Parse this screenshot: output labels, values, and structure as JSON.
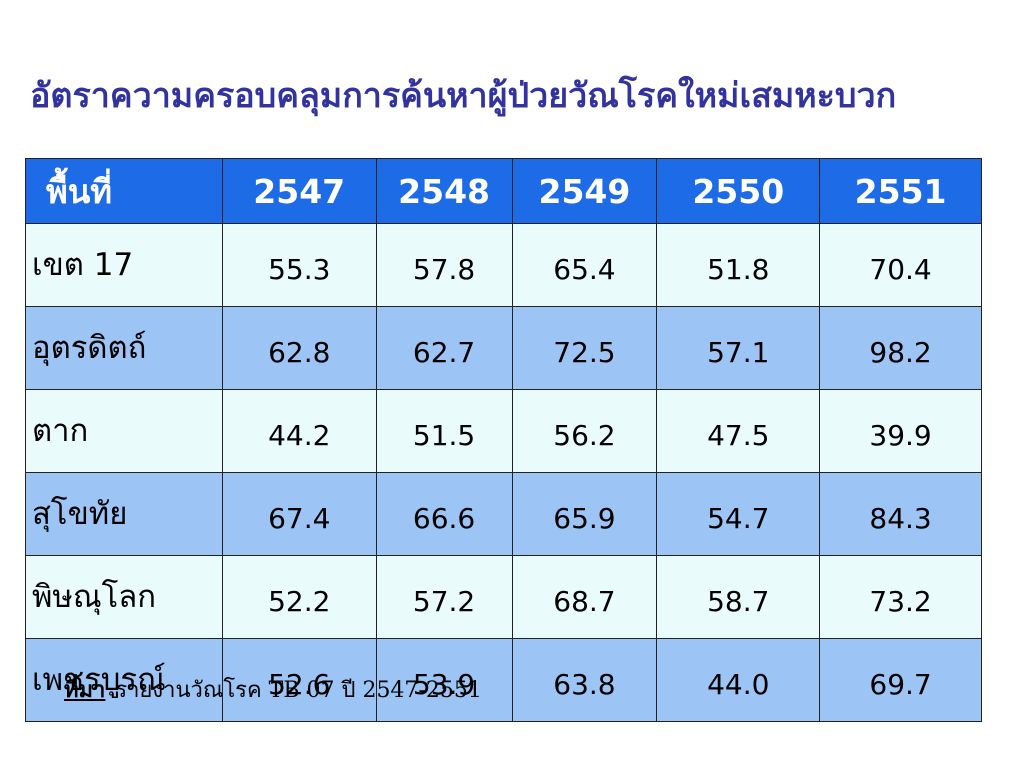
{
  "title": "อัตราความครอบคลุมการค้นหาผู้ป่วยวัณโรคใหม่เสมหะบวก",
  "table": {
    "header": [
      "พื้นที่",
      "2547",
      "2548",
      "2549",
      "2550",
      "2551"
    ],
    "rows": [
      [
        "เขต 17",
        "55.3",
        "57.8",
        "65.4",
        "51.8",
        "70.4"
      ],
      [
        "อุตรดิตถ์",
        "62.8",
        "62.7",
        "72.5",
        "57.1",
        "98.2"
      ],
      [
        "ตาก",
        "44.2",
        "51.5",
        "56.2",
        "47.5",
        "39.9"
      ],
      [
        "สุโขทัย",
        "67.4",
        "66.6",
        "65.9",
        "54.7",
        "84.3"
      ],
      [
        "พิษณุโลก",
        "52.2",
        "57.2",
        "68.7",
        "58.7",
        "73.2"
      ],
      [
        "เพชรบูรณ์",
        "52.6",
        "53.9",
        "63.8",
        "44.0",
        "69.7"
      ]
    ]
  },
  "source": {
    "label": "ที่มา",
    "text": "รายงานวัณโรค TB 07 ปี 2547-2551"
  }
}
